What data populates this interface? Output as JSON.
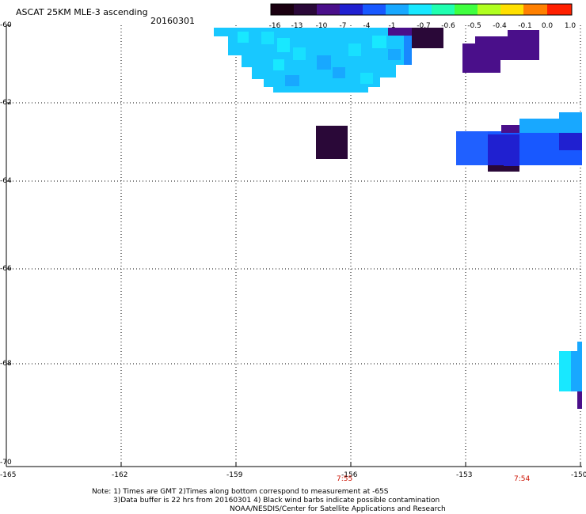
{
  "header": {
    "title": "ASCAT 25KM MLE-3 ascending",
    "date": "20160301"
  },
  "colorbar": {
    "labels": [
      "-16",
      "-13",
      "-10",
      "-7",
      "-4",
      "-1",
      "-0.7",
      "-0.6",
      "-0.5",
      "-0.4",
      "-0.1",
      "0.0",
      "1.0"
    ],
    "colors": [
      "#1a0010",
      "#2a0838",
      "#4a0f8a",
      "#2020d0",
      "#1858ff",
      "#18a8ff",
      "#18e8ff",
      "#20ffb0",
      "#40ff40",
      "#b0ff20",
      "#ffe000",
      "#ff8000",
      "#ff2000"
    ]
  },
  "axes": {
    "y_labels": [
      "-60",
      "-62",
      "-64",
      "-66",
      "-68",
      "-70"
    ],
    "x_labels": [
      "-165",
      "-162",
      "-159",
      "-156",
      "-153",
      "-150"
    ]
  },
  "times": [
    {
      "label": "7:55"
    },
    {
      "label": "7:54"
    }
  ],
  "notes": {
    "line1": "Note: 1) Times are GMT 2)Times along bottom correspond to measurement at -65S",
    "line2": "3)Data buffer is 22 hrs from 20160301 4) Black wind barbs indicate possible contamination",
    "line3": "NOAA/NESDIS/Center for Satellite Applications and Research"
  }
}
